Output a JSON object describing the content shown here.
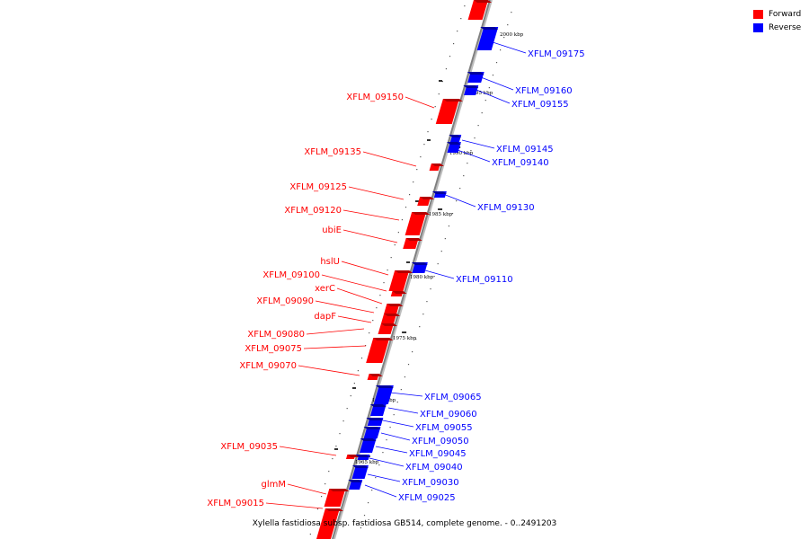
{
  "legend": [
    {
      "label": "Forward",
      "color": "#ff0000"
    },
    {
      "label": "Reverse",
      "color": "#0000ff"
    }
  ],
  "colors": {
    "forward": "#ff0000",
    "forward_dark": "#b40000",
    "reverse": "#0000ff",
    "reverse_dark": "#0000a0",
    "axis": "#808080"
  },
  "caption": "Xylella fastidiosa subsp. fastidiosa GB514, complete genome. - 0..2491203",
  "ticks": [
    {
      "label": "2000 kbp"
    },
    {
      "label": "1995 kbp"
    },
    {
      "label": "1990 kbp"
    },
    {
      "label": "1985 kbp"
    },
    {
      "label": "1980 kbp"
    },
    {
      "label": "1975 kbp"
    },
    {
      "label": "1970 kbp"
    },
    {
      "label": "1965 kbp"
    }
  ],
  "forward_genes": [
    {
      "name": "XFLM_09150"
    },
    {
      "name": "XFLM_09135"
    },
    {
      "name": "XFLM_09125"
    },
    {
      "name": "XFLM_09120"
    },
    {
      "name": "ubiE"
    },
    {
      "name": "hslU"
    },
    {
      "name": "XFLM_09100"
    },
    {
      "name": "xerC"
    },
    {
      "name": "XFLM_09090"
    },
    {
      "name": "dapF"
    },
    {
      "name": "XFLM_09080"
    },
    {
      "name": "XFLM_09075"
    },
    {
      "name": "XFLM_09070"
    },
    {
      "name": "XFLM_09035"
    },
    {
      "name": "glmM"
    },
    {
      "name": "XFLM_09015"
    }
  ],
  "reverse_genes": [
    {
      "name": "XFLM_09175"
    },
    {
      "name": "XFLM_09160"
    },
    {
      "name": "XFLM_09155"
    },
    {
      "name": "XFLM_09145"
    },
    {
      "name": "XFLM_09140"
    },
    {
      "name": "XFLM_09130"
    },
    {
      "name": "XFLM_09110"
    },
    {
      "name": "XFLM_09065"
    },
    {
      "name": "XFLM_09060"
    },
    {
      "name": "XFLM_09055"
    },
    {
      "name": "XFLM_09050"
    },
    {
      "name": "XFLM_09045"
    },
    {
      "name": "XFLM_09040"
    },
    {
      "name": "XFLM_09030"
    },
    {
      "name": "XFLM_09025"
    }
  ]
}
